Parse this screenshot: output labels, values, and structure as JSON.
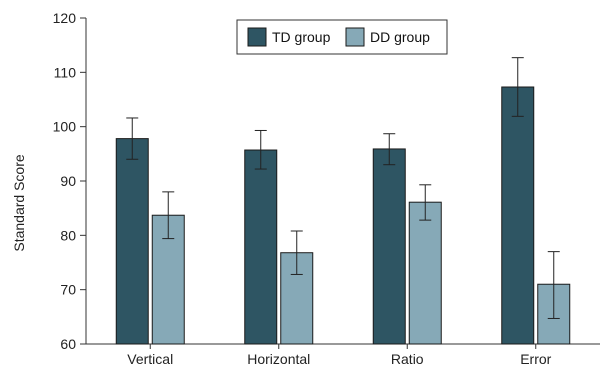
{
  "chart_data": {
    "type": "bar",
    "title": "",
    "xlabel": "",
    "ylabel": "Standard Score",
    "ylim": [
      60,
      120
    ],
    "yticks": [
      60,
      70,
      80,
      90,
      100,
      110,
      120
    ],
    "categories": [
      "Vertical",
      "Horizontal",
      "Ratio",
      "Error"
    ],
    "series": [
      {
        "name": "TD group",
        "color": "#2e5563",
        "values": [
          97.8,
          95.7,
          95.9,
          107.3
        ],
        "error_low": [
          94.0,
          92.2,
          93.0,
          101.9
        ],
        "error_high": [
          101.6,
          99.3,
          98.7,
          112.7
        ]
      },
      {
        "name": "DD group",
        "color": "#86a9b7",
        "values": [
          83.7,
          76.8,
          86.1,
          71.0
        ],
        "error_low": [
          79.4,
          72.8,
          82.8,
          64.7
        ],
        "error_high": [
          88.0,
          80.8,
          89.3,
          77.0
        ]
      }
    ],
    "grid": false,
    "legend": "top-center"
  }
}
